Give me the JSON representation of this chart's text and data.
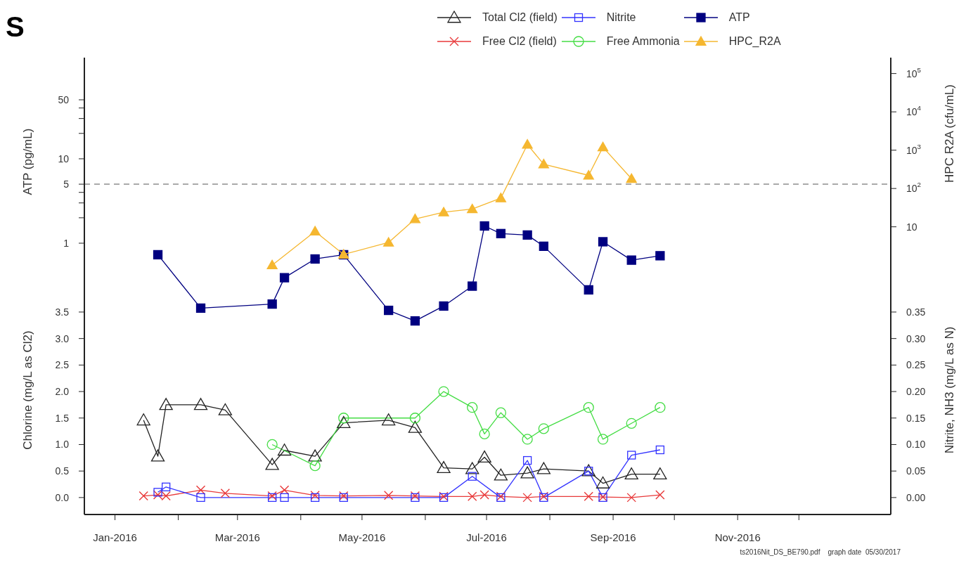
{
  "chart_data": [
    {
      "type": "line",
      "title": "S",
      "ylabel": "ATP (pg/mL)",
      "log": true,
      "legend": "top",
      "tick_labels": "y",
      "xlim": [
        "2015-12-17",
        "2017-01-15"
      ],
      "ylim": [
        0.00061,
        158
      ],
      "yticks": [
        {
          "value": 1,
          "label": "1"
        },
        {
          "value": 2,
          "label": null
        },
        {
          "value": 3,
          "label": null
        },
        {
          "value": 4,
          "label": null
        },
        5,
        10,
        {
          "value": 20,
          "label": null
        },
        {
          "value": 30,
          "label": null
        },
        {
          "value": 40,
          "label": null
        },
        50
      ],
      "ref_lines": [
        {
          "axis": "y",
          "value": 5,
          "color": "#aaaaaa",
          "line_style": "dashed"
        }
      ],
      "series": [
        {
          "name": "ATP",
          "color": "#000080",
          "marker": "square",
          "x": [
            "2016-01-22",
            "2016-02-12",
            "2016-03-18",
            "2016-03-24",
            "2016-04-08",
            "2016-04-22",
            "2016-05-14",
            "2016-05-27",
            "2016-06-10",
            "2016-06-24",
            "2016-06-30",
            "2016-07-08",
            "2016-07-21",
            "2016-07-29",
            "2016-08-20",
            "2016-08-27",
            "2016-09-10",
            "2016-09-24"
          ],
          "values": [
            0.73,
            0.17,
            0.19,
            0.39,
            0.65,
            0.73,
            0.16,
            0.12,
            0.18,
            0.31,
            1.6,
            1.3,
            1.25,
            0.92,
            0.28,
            1.04,
            0.63,
            0.71
          ]
        }
      ]
    },
    {
      "type": "line",
      "y2label": "HPC R2A (cfu/mL)",
      "log": "y2",
      "legend": "top",
      "tick_labels": "y",
      "xlim": [
        "2015-12-17",
        "2017-01-15"
      ],
      "y2lim": [
        3.1e-07,
        260000
      ],
      "y2ticks": [
        10,
        {
          "value": 100,
          "label": "10$^{2}$"
        },
        {
          "value": 1000,
          "label": "10$^{3}$"
        },
        {
          "value": 10000,
          "label": "10$^{4}$"
        },
        {
          "value": 100000,
          "label": "10$^{5}$"
        }
      ],
      "series": [
        {
          "name": "HPC_R2A",
          "color": "#f5b730",
          "marker": "triangle",
          "axis": "y2",
          "x": [
            "2016-03-18",
            "2016-04-08",
            "2016-04-22",
            "2016-05-14",
            "2016-05-27",
            "2016-06-10",
            "2016-06-24",
            "2016-07-08",
            "2016-07-21",
            "2016-07-29",
            "2016-08-20",
            "2016-08-27",
            "2016-09-10"
          ],
          "values": [
            1,
            7.6,
            1.9,
            3.9,
            16,
            24,
            29,
            56,
            1400,
            430,
            220,
            1200,
            180
          ]
        }
      ]
    },
    {
      "type": "line",
      "ylabel": "Chlorine (mg/L as Cl2)",
      "y2label": "Nitrite, NH3 (mg/L as N)",
      "legend": "top",
      "xlim": [
        "2015-12-17",
        "2017-01-15"
      ],
      "xticks": [
        {
          "value": "2016-01",
          "label": "Jan-2016"
        },
        {
          "value": "2016-02",
          "label": null
        },
        {
          "value": "2016-03",
          "label": "Mar-2016"
        },
        {
          "value": "2016-04",
          "label": null
        },
        {
          "value": "2016-05",
          "label": "May-2016"
        },
        {
          "value": "2016-06",
          "label": null
        },
        {
          "value": "2016-07",
          "label": "Jul-2016"
        },
        {
          "value": "2016-08",
          "label": null
        },
        {
          "value": "2016-09",
          "label": "Sep-2016"
        },
        {
          "value": "2016-10",
          "label": null
        },
        {
          "value": "2016-11",
          "label": "Nov-2016"
        },
        {
          "value": "2016-12",
          "label": null
        }
      ],
      "ylim": [
        -0.32,
        8.3
      ],
      "yticks": [
        {
          "value": 0,
          "label": "0.0"
        },
        {
          "value": 0.5,
          "label": "0.5"
        },
        {
          "value": 1,
          "label": "1.0"
        },
        {
          "value": 1.5,
          "label": "1.5"
        },
        {
          "value": 2,
          "label": "2.0"
        },
        {
          "value": 2.5,
          "label": "2.5"
        },
        {
          "value": 3,
          "label": "3.0"
        },
        {
          "value": 3.5,
          "label": "3.5"
        }
      ],
      "y2lim": [
        -0.032,
        0.83
      ],
      "y2ticks": [
        {
          "value": 0,
          "label": "0.00"
        },
        {
          "value": 0.05,
          "label": "0.05"
        },
        {
          "value": 0.1,
          "label": "0.10"
        },
        {
          "value": 0.15,
          "label": "0.15"
        },
        {
          "value": 0.2,
          "label": "0.20"
        },
        {
          "value": 0.25,
          "label": "0.25"
        },
        {
          "value": 0.3,
          "label": "0.30"
        },
        {
          "value": 0.35,
          "label": "0.35"
        }
      ],
      "annotations": [
        "ts2016Nit_DS_BE790.pdf    graph date  05/30/2017"
      ],
      "series": [
        {
          "name": "Total Cl2 (field)",
          "color": "#222222",
          "marker": "triangle",
          "x": [
            "2016-01-15",
            "2016-01-22",
            "2016-01-26",
            "2016-02-12",
            "2016-02-24",
            "2016-03-18",
            "2016-03-24",
            "2016-04-08",
            "2016-04-22",
            "2016-05-14",
            "2016-05-27",
            "2016-06-10",
            "2016-06-24",
            "2016-06-30",
            "2016-07-08",
            "2016-07-21",
            "2016-07-29",
            "2016-08-20",
            "2016-08-27",
            "2016-09-10",
            "2016-09-24"
          ],
          "values": [
            1.46,
            0.78,
            1.75,
            1.75,
            1.65,
            0.62,
            0.89,
            0.78,
            1.41,
            1.46,
            1.32,
            0.56,
            0.54,
            0.76,
            0.42,
            0.46,
            0.54,
            0.5,
            0.27,
            0.44,
            0.44
          ]
        },
        {
          "name": "Free Cl2 (field)",
          "color": "#e8393a",
          "marker": "cross",
          "x": [
            "2016-01-15",
            "2016-01-22",
            "2016-01-26",
            "2016-02-12",
            "2016-02-24",
            "2016-03-18",
            "2016-03-24",
            "2016-04-08",
            "2016-04-22",
            "2016-05-14",
            "2016-05-27",
            "2016-06-10",
            "2016-06-24",
            "2016-06-30",
            "2016-07-08",
            "2016-07-21",
            "2016-07-29",
            "2016-08-20",
            "2016-08-27",
            "2016-09-10",
            "2016-09-24"
          ],
          "values": [
            0.03,
            0.05,
            0.03,
            0.14,
            0.08,
            0.03,
            0.14,
            0.04,
            0.03,
            0.04,
            0.03,
            0.02,
            0.02,
            0.05,
            0.02,
            0,
            0.02,
            0.02,
            0.01,
            0,
            0.05
          ]
        },
        {
          "name": "Nitrite",
          "color": "#3333ff",
          "marker": "square",
          "axis": "y2",
          "x": [
            "2016-01-22",
            "2016-01-26",
            "2016-02-12",
            "2016-03-18",
            "2016-03-24",
            "2016-04-08",
            "2016-04-22",
            "2016-05-27",
            "2016-06-10",
            "2016-06-24",
            "2016-07-08",
            "2016-07-21",
            "2016-07-29",
            "2016-08-20",
            "2016-08-27",
            "2016-09-10",
            "2016-09-24"
          ],
          "values": [
            0.01,
            0.02,
            0,
            0,
            0,
            0,
            0,
            0,
            0,
            0.04,
            0,
            0.07,
            0,
            0.05,
            0,
            0.08,
            0.09
          ]
        },
        {
          "name": "Free Ammonia",
          "color": "#44dd44",
          "marker": "circle",
          "axis": "y2",
          "x": [
            "2016-03-18",
            "2016-04-08",
            "2016-04-22",
            "2016-05-27",
            "2016-06-10",
            "2016-06-24",
            "2016-06-30",
            "2016-07-08",
            "2016-07-21",
            "2016-07-29",
            "2016-08-20",
            "2016-08-27",
            "2016-09-10",
            "2016-09-24"
          ],
          "values": [
            0.1,
            0.06,
            0.15,
            0.15,
            0.2,
            0.17,
            0.12,
            0.16,
            0.11,
            0.13,
            0.17,
            0.11,
            0.14,
            0.17
          ]
        }
      ]
    }
  ]
}
